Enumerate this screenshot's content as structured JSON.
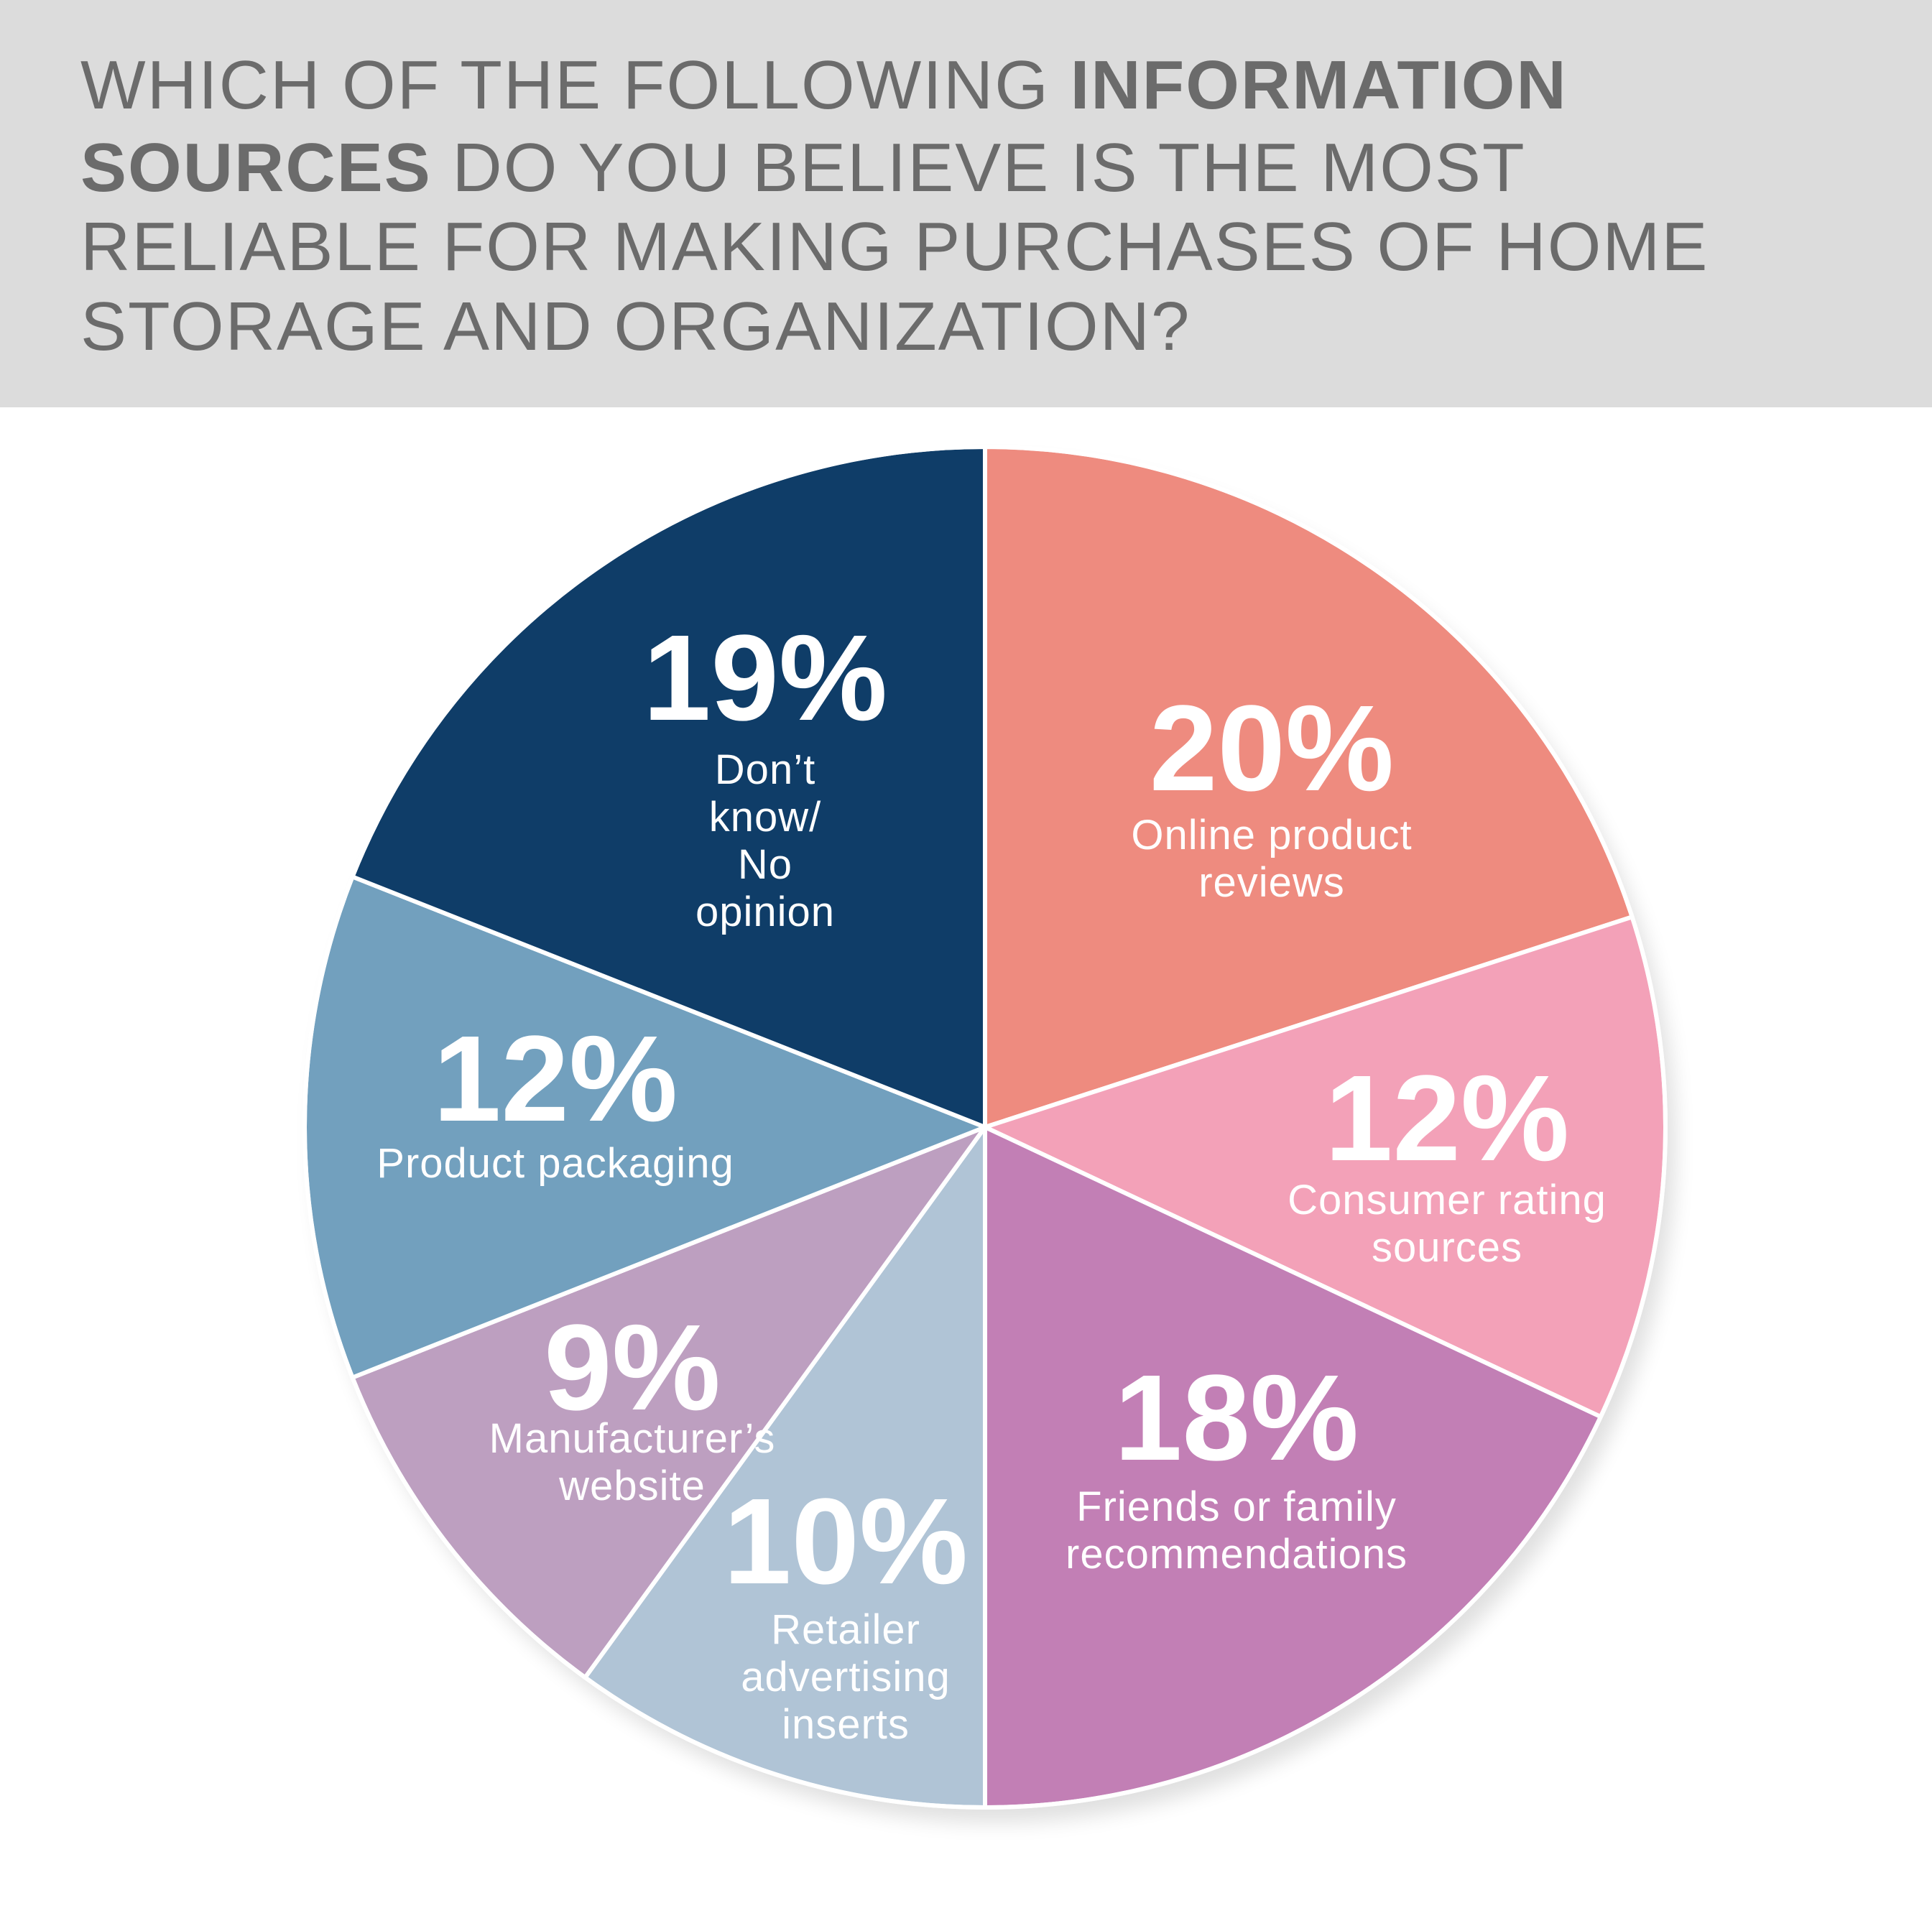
{
  "chart_data": {
    "type": "pie",
    "title": [
      [
        {
          "text": "WHICH OF THE FOLLOWING ",
          "bold": false
        },
        {
          "text": "INFORMATION",
          "bold": true
        }
      ],
      [
        {
          "text": "SOURCES",
          "bold": true
        },
        {
          "text": " DO YOU BELIEVE IS THE MOST",
          "bold": false
        }
      ],
      [
        {
          "text": "RELIABLE FOR MAKING PURCHASES OF HOME",
          "bold": false
        }
      ],
      [
        {
          "text": "STORAGE AND ORGANIZATION?",
          "bold": false
        }
      ]
    ],
    "categories": [
      [
        "Online product",
        "reviews"
      ],
      [
        "Consumer rating",
        "sources"
      ],
      [
        "Friends or family",
        "recommendations"
      ],
      [
        "Retailer",
        "advertising",
        "inserts"
      ],
      [
        "Manufacturer’s",
        "website"
      ],
      [
        "Product packaging"
      ],
      [
        "Don’t",
        "know/",
        "No",
        "opinion"
      ]
    ],
    "values": [
      20,
      12,
      18,
      10,
      9,
      12,
      19
    ],
    "value_labels": [
      "20%",
      "12%",
      "18%",
      "10%",
      "9%",
      "12%",
      "19%"
    ],
    "colors": [
      "#ee8b7f",
      "#f3a1b8",
      "#c27fb5",
      "#b0c4d6",
      "#bd9fc0",
      "#72a0be",
      "#0f3d68"
    ]
  }
}
